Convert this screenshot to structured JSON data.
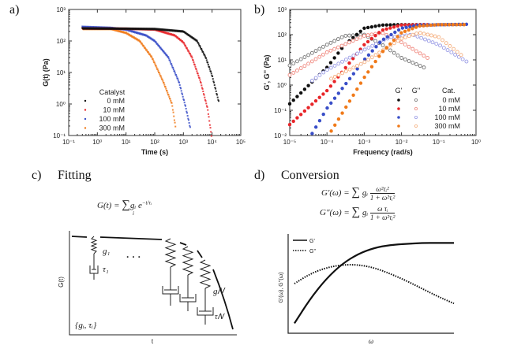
{
  "panels": {
    "a": {
      "letter": "a)"
    },
    "b": {
      "letter": "b)"
    },
    "c": {
      "letter": "c)",
      "title": "Fitting",
      "equation": "G(t) = Σᵢ gᵢ e^(−t/τᵢ)",
      "eq_lhs": "G(t) =",
      "eq_sum": "∑",
      "eq_sub": "i",
      "eq_rhs": "gᵢ e",
      "eq_exp": "−t/τᵢ",
      "ylabel": "G(t)",
      "xlabel": "t",
      "label_g1": "g₁",
      "label_tau1": "τ₁",
      "label_gN": "g𝑁",
      "label_tauN": "τ𝑁",
      "label_set": "{gᵢ, τᵢ}",
      "ellipsis": "· · ·"
    },
    "d": {
      "letter": "d)",
      "title": "Conversion",
      "eq1_lhs": "G′(ω) =",
      "eq1_num": "ω²τᵢ²",
      "eq2_lhs": "G″(ω) =",
      "eq2_num": "ω τᵢ",
      "den": "1 + ω²τᵢ²",
      "sum": "∑",
      "sub": "i",
      "gi": "gᵢ",
      "ylabel": "G'(ω), G''(ω)",
      "xlabel": "ω",
      "legend": [
        "G'",
        "G''"
      ]
    }
  },
  "chart_data": [
    {
      "type": "scatter",
      "panel": "a",
      "xlabel": "Time (s)",
      "ylabel": "G(t) (Pa)",
      "xscale": "log",
      "yscale": "log",
      "xlim": [
        0.1,
        100000
      ],
      "ylim": [
        0.1,
        1000
      ],
      "xticks": [
        "10⁻¹",
        "10⁰",
        "10¹",
        "10²",
        "10³",
        "10⁴",
        "10⁵"
      ],
      "yticks": [
        "10⁻¹",
        "10⁰",
        "10¹",
        "10²",
        "10³"
      ],
      "legend_title": "Catalyst",
      "legend_position": "bottom-left",
      "series": [
        {
          "name": "0 mM",
          "color": "#111111",
          "x": [
            0.3,
            10,
            100,
            1000,
            3000,
            6000,
            10000,
            17000
          ],
          "y": [
            250,
            245,
            240,
            200,
            100,
            30,
            8,
            1.2
          ]
        },
        {
          "name": "10 mM",
          "color": "#e8262a",
          "x": [
            0.3,
            10,
            100,
            500,
            1000,
            2000,
            4000,
            7000,
            9500
          ],
          "y": [
            250,
            245,
            230,
            150,
            90,
            30,
            5,
            0.7,
            0.1
          ]
        },
        {
          "name": "100 mM",
          "color": "#3a4fc8",
          "x": [
            0.3,
            3,
            10,
            50,
            100,
            300,
            700,
            1200,
            1800
          ],
          "y": [
            280,
            260,
            230,
            150,
            100,
            30,
            5,
            0.8,
            0.15
          ]
        },
        {
          "name": "300 mM",
          "color": "#f07a1a",
          "x": [
            0.3,
            3,
            10,
            30,
            80,
            200,
            400,
            550
          ],
          "y": [
            240,
            240,
            180,
            100,
            30,
            5,
            1,
            0.15
          ]
        }
      ]
    },
    {
      "type": "scatter",
      "panel": "b",
      "xlabel": "Frequency (rad/s)",
      "ylabel": "G', G'' (Pa)",
      "xscale": "log",
      "yscale": "log",
      "xlim": [
        1e-05,
        1
      ],
      "ylim": [
        0.01,
        1000
      ],
      "xticks": [
        "10⁻⁵",
        "10⁻⁴",
        "10⁻³",
        "10⁻²",
        "10⁻¹",
        "10⁰"
      ],
      "yticks": [
        "10⁻²",
        "10⁻¹",
        "10⁰",
        "10¹",
        "10²",
        "10³"
      ],
      "legend_headers": [
        "G'",
        "G''",
        "Cat."
      ],
      "legend_position": "bottom-right",
      "series": [
        {
          "name": "0 mM",
          "color": "#111111",
          "light": "#777777",
          "Gp": {
            "x": [
              1e-05,
              0.0001,
              0.0003,
              0.001,
              0.003,
              0.01,
              0.04
            ],
            "y": [
              0.18,
              5,
              40,
              180,
              240,
              250,
              250
            ]
          },
          "Gpp": {
            "x": [
              1e-05,
              0.0001,
              0.0003,
              0.001,
              0.003,
              0.01,
              0.04
            ],
            "y": [
              6,
              40,
              90,
              100,
              40,
              12,
              5
            ]
          }
        },
        {
          "name": "10 mM",
          "color": "#e8262a",
          "light": "#f08a80",
          "Gp": {
            "x": [
              1e-05,
              0.0001,
              0.001,
              0.003,
              0.01,
              0.05
            ],
            "y": [
              0.027,
              0.6,
              40,
              150,
              240,
              250
            ]
          },
          "Gpp": {
            "x": [
              1e-05,
              0.0001,
              0.001,
              0.003,
              0.01,
              0.05
            ],
            "y": [
              2.5,
              20,
              90,
              120,
              50,
              12
            ]
          }
        },
        {
          "name": "100 mM",
          "color": "#3a4fc8",
          "light": "#9a9ce6",
          "Gp": {
            "x": [
              4e-05,
              0.0001,
              0.001,
              0.003,
              0.01,
              0.03,
              0.7
            ],
            "y": [
              0.012,
              0.12,
              10,
              60,
              180,
              240,
              260
            ]
          },
          "Gpp": {
            "x": [
              4e-05,
              0.0001,
              0.001,
              0.005,
              0.02,
              0.1,
              0.7
            ],
            "y": [
              1.5,
              4,
              25,
              80,
              100,
              40,
              7
            ]
          }
        },
        {
          "name": "300 mM",
          "color": "#f07a1a",
          "light": "#f5b080",
          "Gp": {
            "x": [
              0.00013,
              0.001,
              0.003,
              0.01,
              0.03,
              0.1,
              0.6
            ],
            "y": [
              0.015,
              2,
              20,
              120,
              220,
              250,
              250
            ]
          },
          "Gpp": {
            "x": [
              0.00013,
              0.001,
              0.01,
              0.03,
              0.1,
              0.5
            ],
            "y": [
              1.8,
              8,
              70,
              120,
              80,
              12
            ]
          }
        }
      ]
    },
    {
      "type": "line",
      "panel": "d",
      "xlabel": "ω",
      "ylabel": "G'(ω), G''(ω)",
      "series": [
        {
          "name": "G'",
          "style": "solid",
          "x": [
            0,
            1,
            2,
            3,
            4,
            5,
            6,
            7,
            8,
            9,
            10
          ],
          "y": [
            0.1,
            0.35,
            0.55,
            0.7,
            0.8,
            0.86,
            0.89,
            0.9,
            0.91,
            0.91,
            0.91
          ]
        },
        {
          "name": "G''",
          "style": "dotted",
          "x": [
            0,
            1,
            2,
            3,
            4,
            5,
            6,
            7,
            8,
            9,
            10
          ],
          "y": [
            0.5,
            0.6,
            0.66,
            0.69,
            0.69,
            0.66,
            0.6,
            0.53,
            0.45,
            0.37,
            0.3
          ]
        }
      ]
    }
  ]
}
